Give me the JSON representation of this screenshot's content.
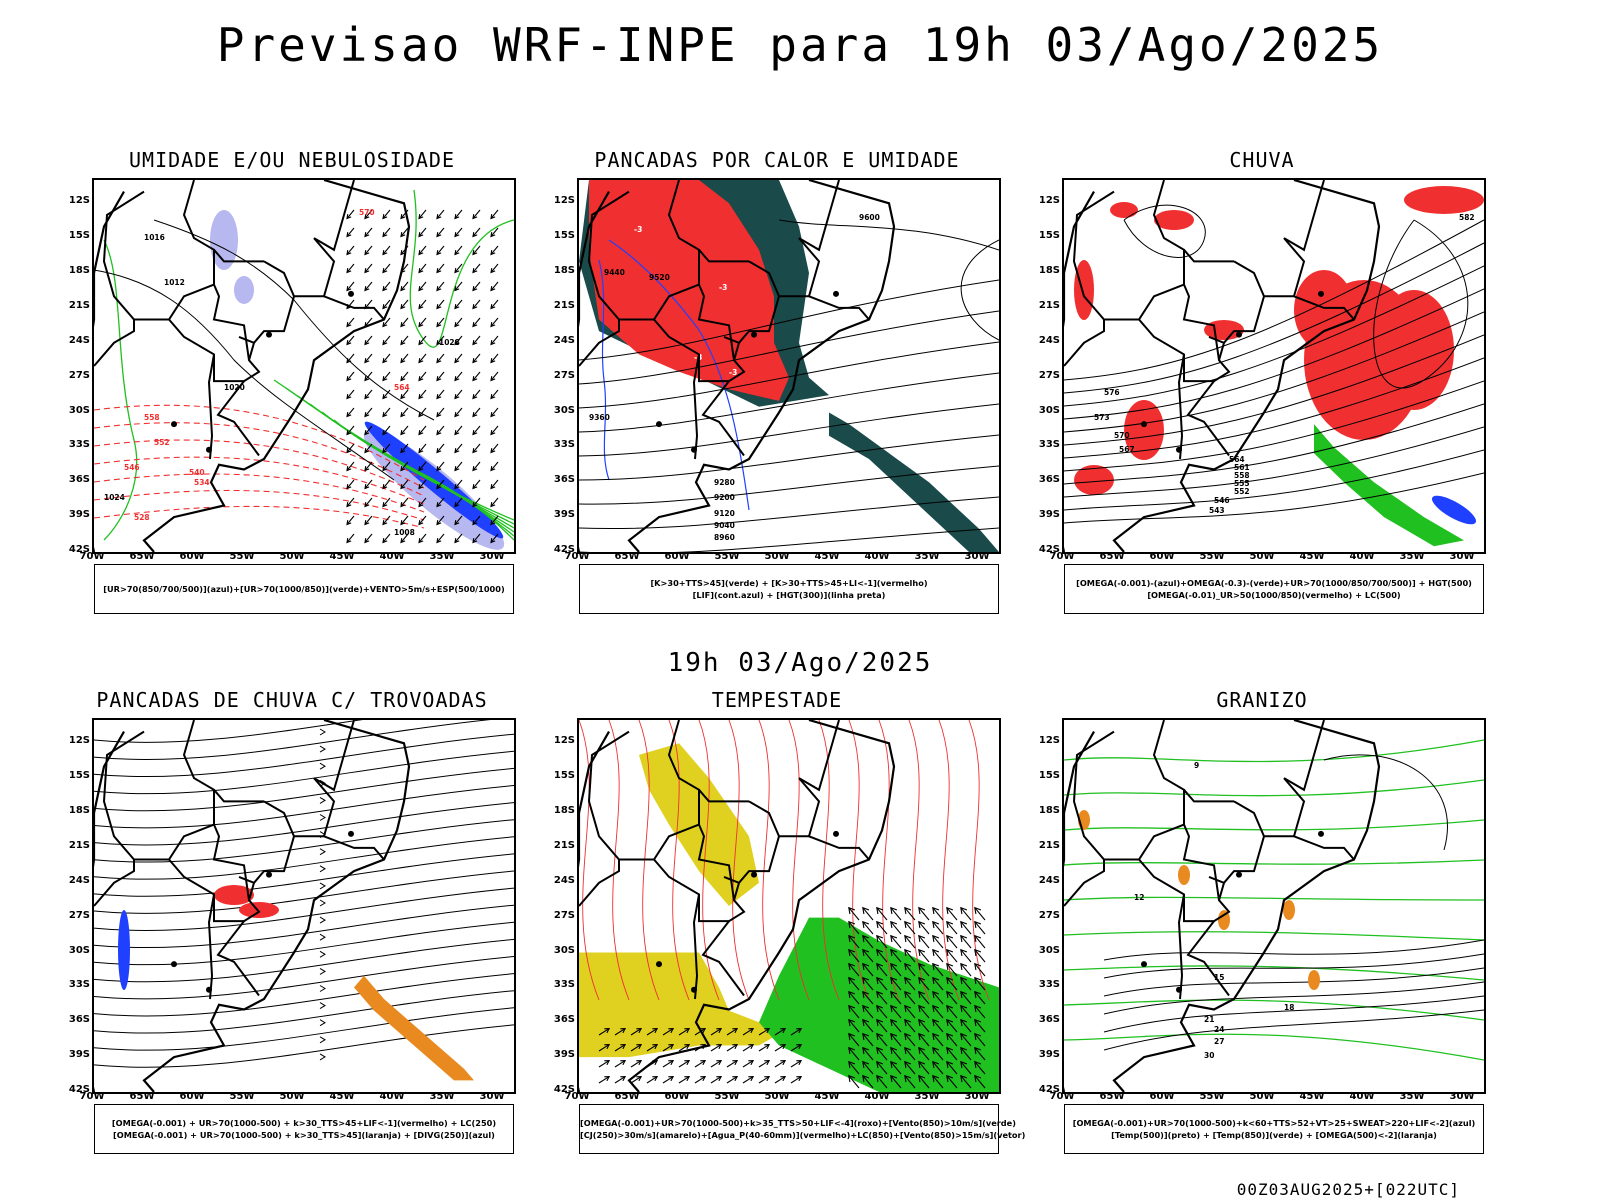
{
  "main_title": "Previsao WRF-INPE  para 19h 03/Ago/2025",
  "mid_title": "19h 03/Ago/2025",
  "footer": "00Z03AUG2025+[022UTC]",
  "lat_ticks": [
    "12S",
    "15S",
    "18S",
    "21S",
    "24S",
    "27S",
    "30S",
    "33S",
    "36S",
    "39S",
    "42S"
  ],
  "lon_ticks": [
    "70W",
    "65W",
    "60W",
    "55W",
    "50W",
    "45W",
    "40W",
    "35W",
    "30W"
  ],
  "colors": {
    "blue": "#2040ff",
    "light_blue": "#b8b8f0",
    "green": "#20c020",
    "red": "#f03030",
    "dark_teal": "#1a4a4a",
    "yellow": "#e0d020",
    "orange": "#e88a20",
    "border": "#000000"
  },
  "panels": [
    {
      "title": "UMIDADE E/OU NEBULOSIDADE",
      "legend": [
        "[UR>70(850/700/500)](azul)+[UR>70(1000/850)](verde)+VENTO>5m/s+ESP(500/1000)"
      ]
    },
    {
      "title": "PANCADAS POR CALOR E UMIDADE",
      "legend": [
        "[K>30+TTS>45](verde) + [K>30+TTS>45+LI<-1](vermelho)",
        "[LIF](cont.azul) + [HGT(300)](linha preta)"
      ]
    },
    {
      "title": "CHUVA",
      "legend": [
        "[OMEGA(-0.001)-(azul)+OMEGA(-0.3)-(verde)+UR>70(1000/850/700/500)] + HGT(500)",
        "[OMEGA(-0.01)_UR>50(1000/850)(vermelho) + LC(500)"
      ]
    },
    {
      "title": "PANCADAS DE CHUVA C/ TROVOADAS",
      "legend": [
        "[OMEGA(-0.001) + UR>70(1000-500) + k>30_TTS>45+LIF<-1](vermelho) + LC(250)",
        "[OMEGA(-0.001) + UR>70(1000-500) + k>30_TTS>45](laranja) + [DIVG(250)](azul)"
      ]
    },
    {
      "title": "TEMPESTADE",
      "legend": [
        "[OMEGA(-0.001)+UR>70(1000-500)+k>35_TTS>50+LIF<-4](roxo)+[Vento(850)>10m/s](verde)",
        "[CJ(250)>30m/s](amarelo)+[Agua_P(40-60mm)](vermelho)+LC(850)+[Vento(850)>15m/s](vetor)"
      ]
    },
    {
      "title": "GRANIZO",
      "legend": [
        "[OMEGA(-0.001)+UR>70(1000-500)+k<60+TTS>52+VT>25+SWEAT>220+LIF<-2](azul)",
        "[Temp(500)](preto) + [Temp(850)](verde) + [OMEGA(500)<-2](laranja)"
      ]
    }
  ],
  "contour_labels": {
    "p1": [
      "1016",
      "1012",
      "1020",
      "1024",
      "1028",
      "570",
      "564",
      "558",
      "552",
      "546",
      "540",
      "534",
      "528",
      "1008"
    ],
    "p2": [
      "9600",
      "9520",
      "9440",
      "9360",
      "9280",
      "9200",
      "9120",
      "9040",
      "8960",
      "-3"
    ],
    "p3": [
      "582",
      "576",
      "573",
      "570",
      "567",
      "564",
      "561",
      "558",
      "555",
      "552",
      "546",
      "543"
    ],
    "p6": [
      "9",
      "12",
      "15",
      "18",
      "21",
      "24",
      "27",
      "30"
    ]
  }
}
